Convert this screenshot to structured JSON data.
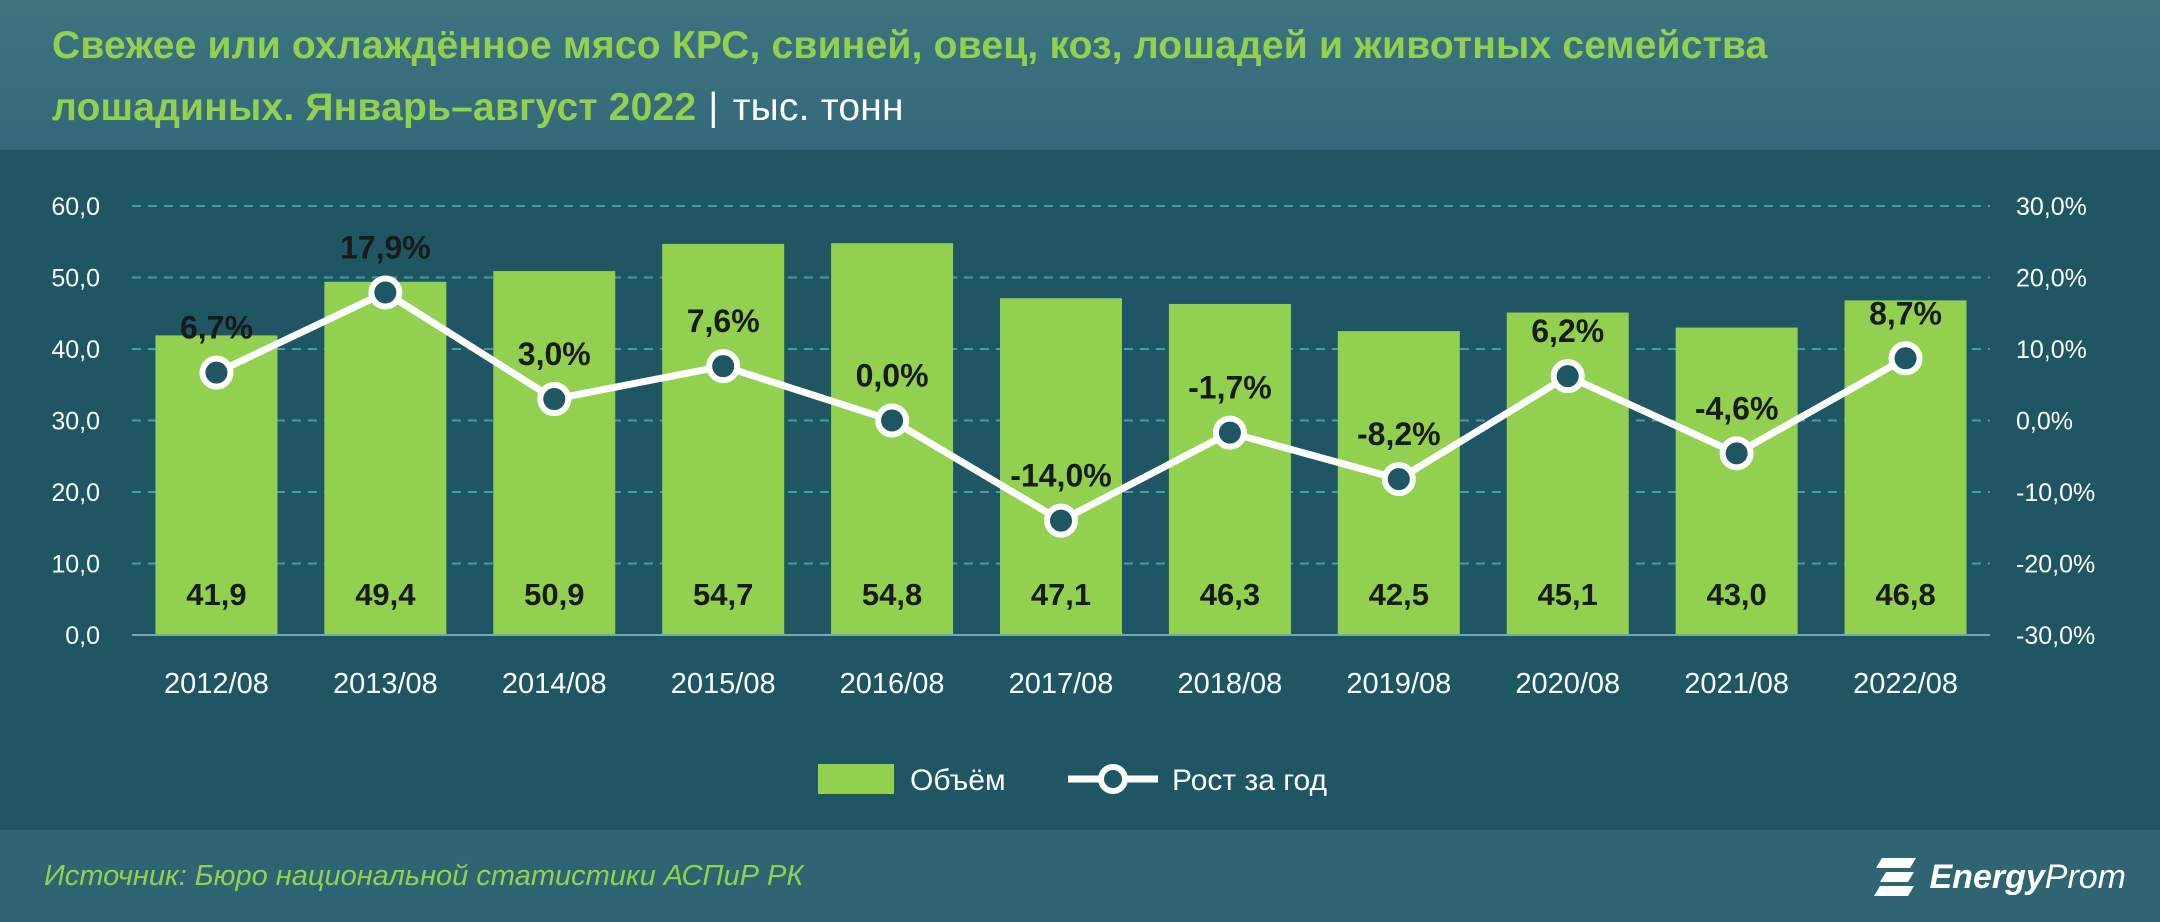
{
  "header": {
    "title_line_1": "Свежее или охлаждённое мясо КРС, свиней, овец, коз, лошадей и животных семейства",
    "title_line_2": "лошадиных. Январь–август 2022",
    "separator": "|",
    "unit": "тыс. тонн"
  },
  "chart_data": {
    "type": "bar",
    "categories": [
      "2012/08",
      "2013/08",
      "2014/08",
      "2015/08",
      "2016/08",
      "2017/08",
      "2018/08",
      "2019/08",
      "2020/08",
      "2021/08",
      "2022/08"
    ],
    "series": [
      {
        "name": "Объём",
        "type": "bar",
        "axis": "left",
        "values": [
          41.9,
          49.4,
          50.9,
          54.7,
          54.8,
          47.1,
          46.3,
          42.5,
          45.1,
          43.0,
          46.8
        ],
        "labels": [
          "41,9",
          "49,4",
          "50,9",
          "54,7",
          "54,8",
          "47,1",
          "46,3",
          "42,5",
          "45,1",
          "43,0",
          "46,8"
        ],
        "color": "#92d050"
      },
      {
        "name": "Рост за год",
        "type": "line",
        "axis": "right",
        "values": [
          6.7,
          17.9,
          3.0,
          7.6,
          0.0,
          -14.0,
          -1.7,
          -8.2,
          6.2,
          -4.6,
          8.7
        ],
        "labels": [
          "6,7%",
          "17,9%",
          "3,0%",
          "7,6%",
          "0,0%",
          "-14,0%",
          "-1,7%",
          "-8,2%",
          "6,2%",
          "-4,6%",
          "8,7%"
        ],
        "color": "#ffffff"
      }
    ],
    "y_left": {
      "min": 0,
      "max": 60,
      "step": 10,
      "tick_labels": [
        "0,0",
        "10,0",
        "20,0",
        "30,0",
        "40,0",
        "50,0",
        "60,0"
      ]
    },
    "y_right": {
      "min": -30,
      "max": 30,
      "step": 10,
      "tick_labels": [
        "-30,0%",
        "-20,0%",
        "-10,0%",
        "0,0%",
        "10,0%",
        "20,0%",
        "30,0%"
      ]
    },
    "grid": true,
    "legend": "bottom-center",
    "colors": {
      "panel": "#1f5664",
      "grid": "#4a9aa8",
      "bar": "#92d050",
      "line": "#ffffff",
      "marker_fill": "#1f5664"
    }
  },
  "footer": {
    "source": "Источник: Бюро национальной статистики АСПиР РК",
    "logo_bold": "Energy",
    "logo_light": "Prom"
  }
}
